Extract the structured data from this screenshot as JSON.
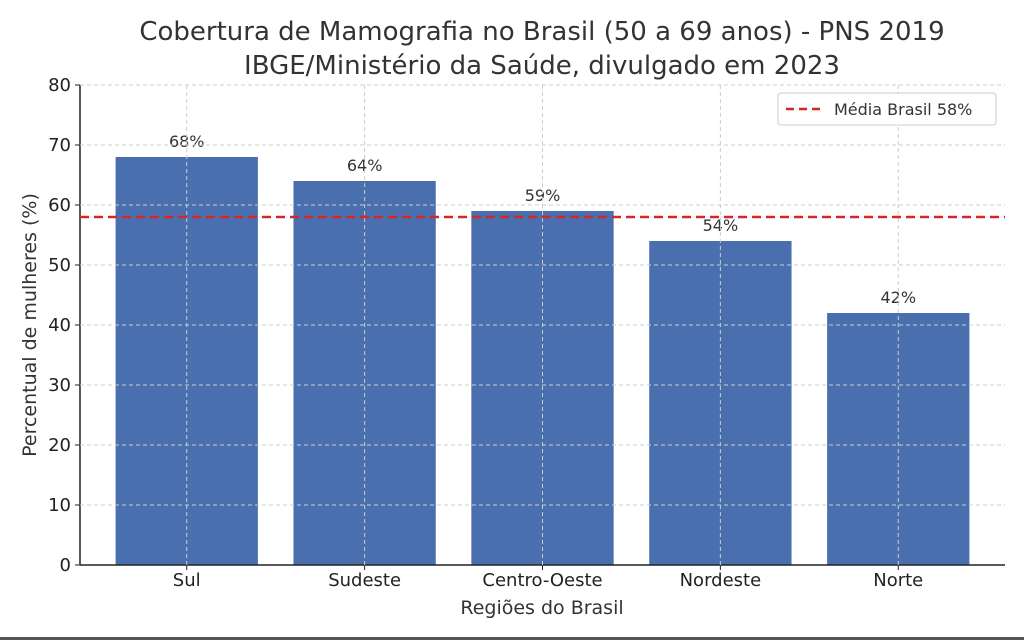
{
  "chart_data": {
    "type": "bar",
    "title": "Cobertura de Mamografia no Brasil (50 a 69 anos) - PNS 2019",
    "subtitle": "IBGE/Ministério da Saúde, divulgado em 2023",
    "xlabel": "Regiões do Brasil",
    "ylabel": "Percentual de mulheres (%)",
    "categories": [
      "Sul",
      "Sudeste",
      "Centro-Oeste",
      "Nordeste",
      "Norte"
    ],
    "values": [
      68,
      64,
      59,
      54,
      42
    ],
    "data_labels": [
      "68%",
      "64%",
      "59%",
      "54%",
      "42%"
    ],
    "ylim": [
      0,
      80
    ],
    "yticks": [
      0,
      10,
      20,
      30,
      40,
      50,
      60,
      70,
      80
    ],
    "grid": true,
    "reference_line": {
      "value": 58,
      "label": "Média Brasil 58%",
      "color": "#d62728",
      "style": "dashed"
    },
    "legend": {
      "placement": "top-right",
      "entries": [
        "Média Brasil 58%"
      ]
    },
    "bar_color": "#4a6fae"
  }
}
